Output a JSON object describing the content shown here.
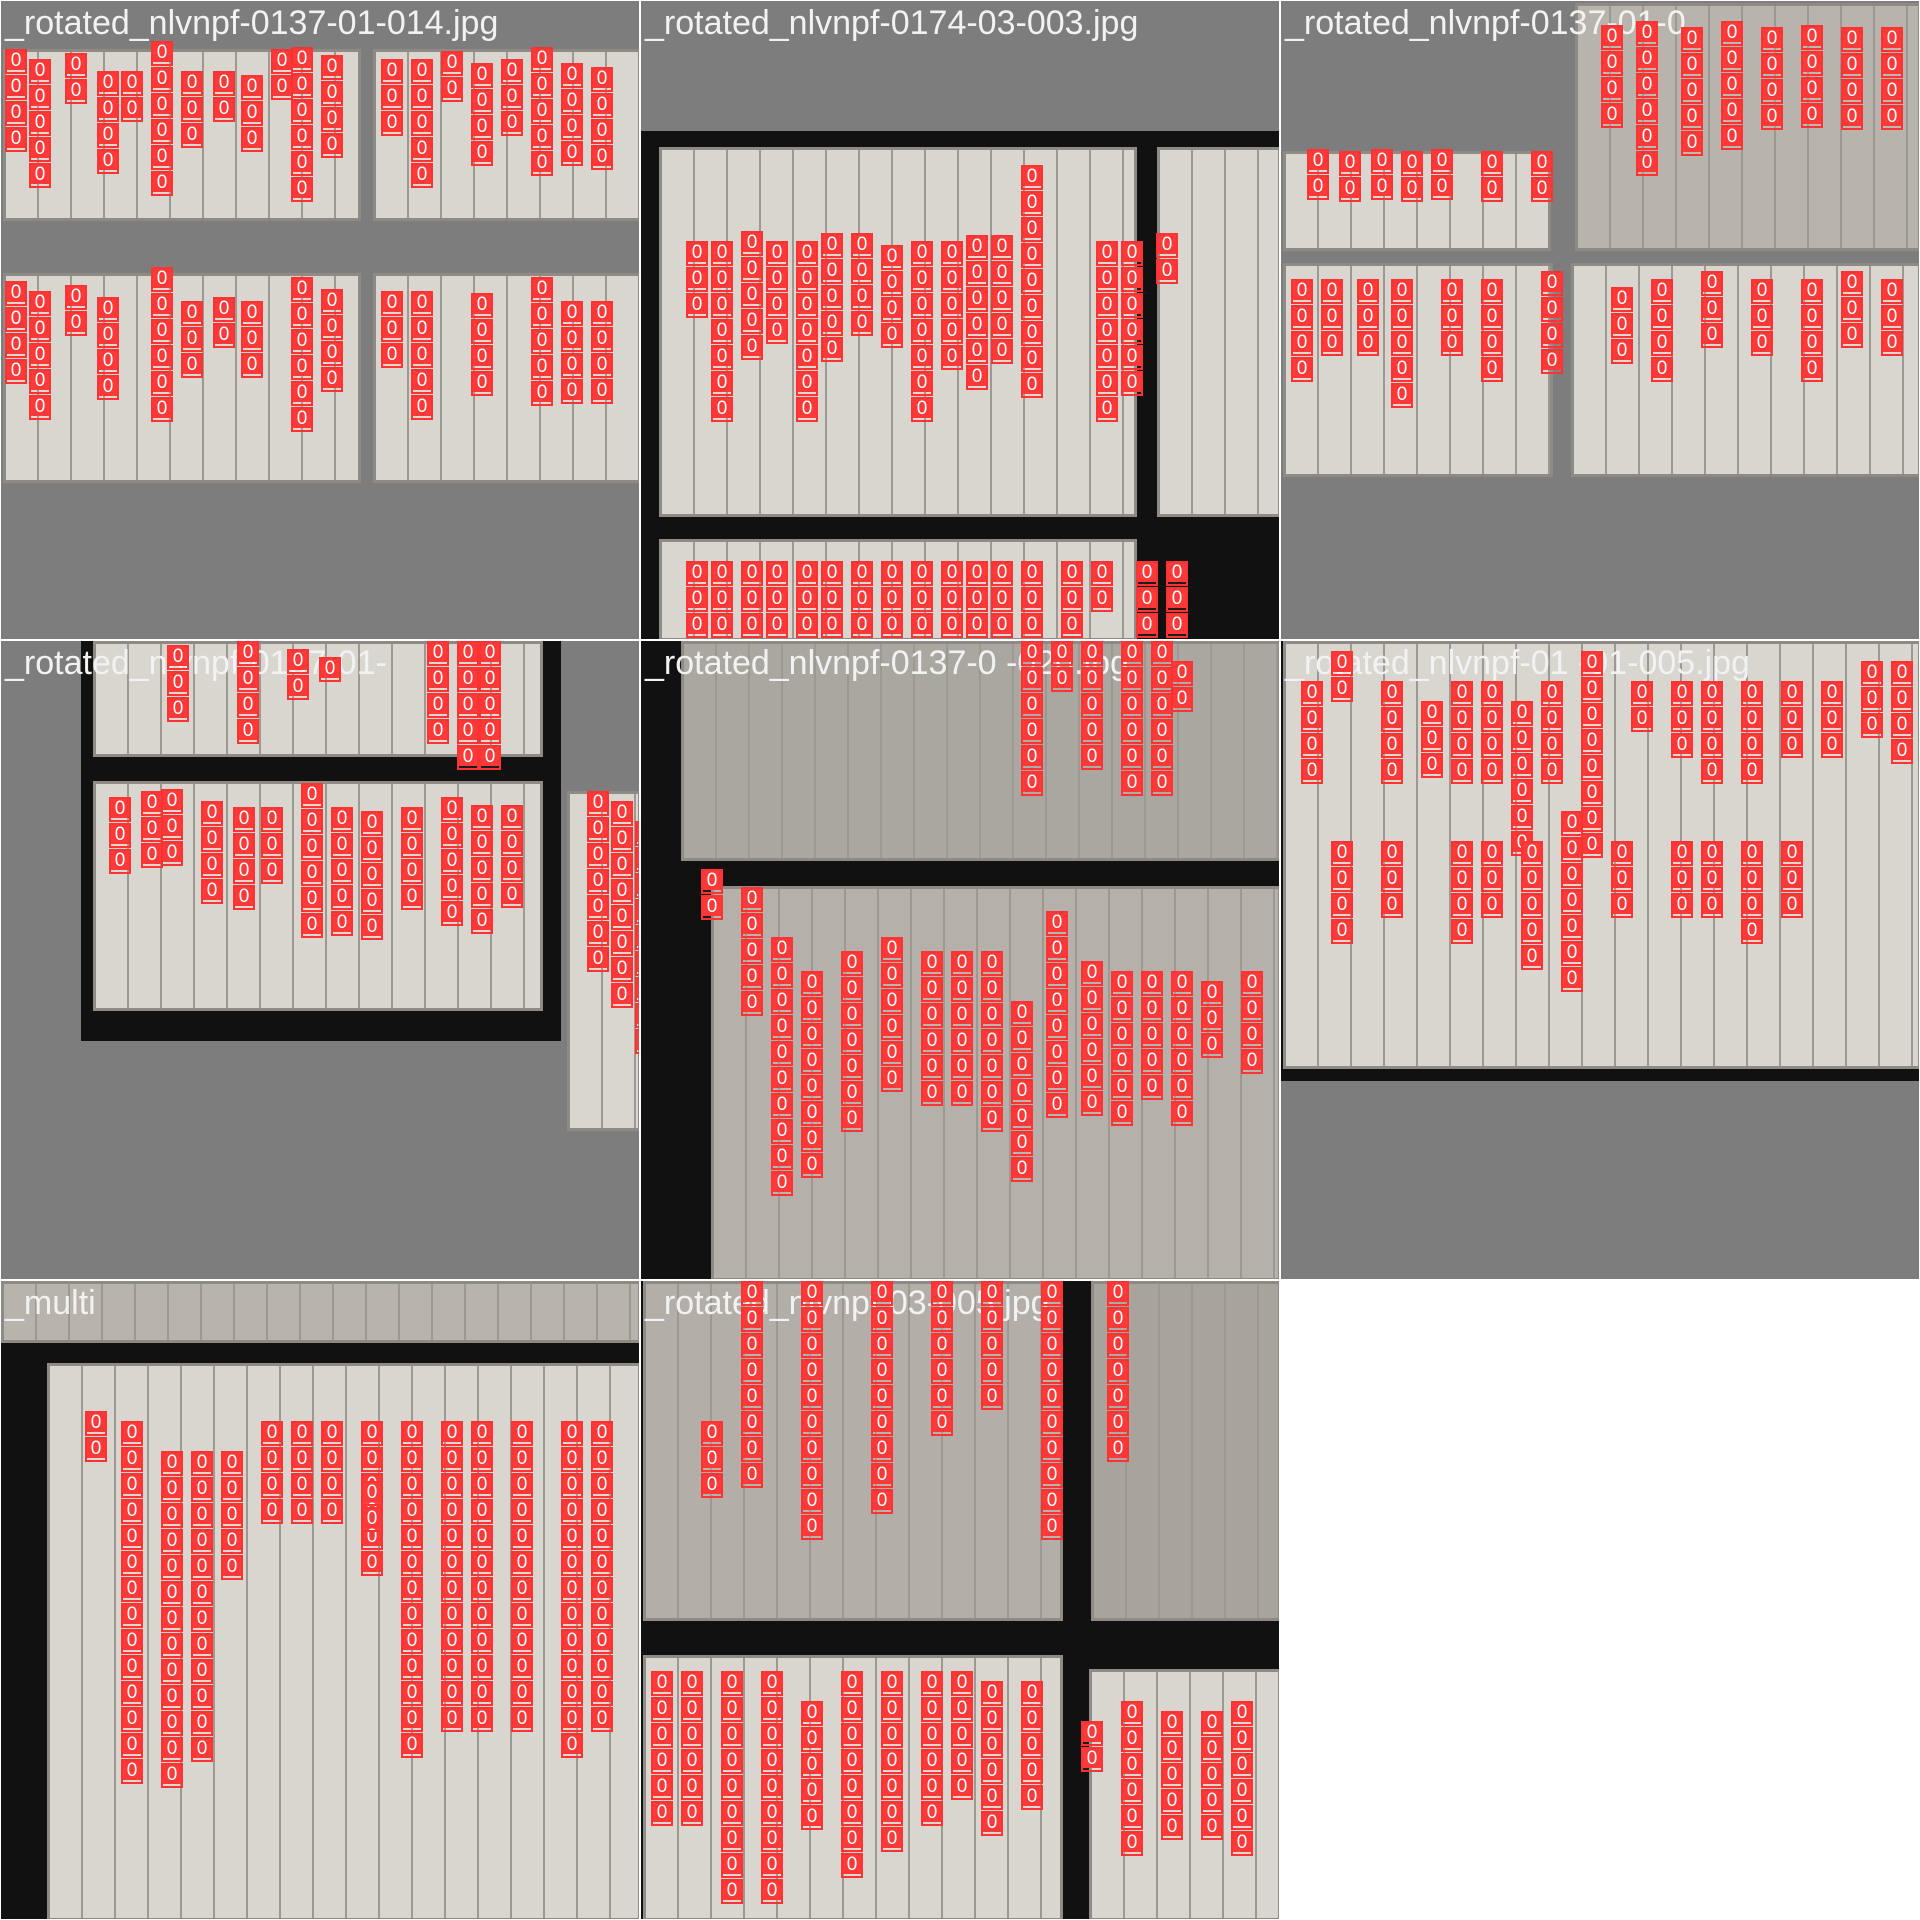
{
  "detection_label": "0",
  "box_color": "#ff3838",
  "tiles": [
    {
      "filename": "_rotated_nlvnpf-0137-01-014.jpg",
      "pages": 4
    },
    {
      "filename": "_rotated_nlvnpf-0174-03-003.jpg",
      "pages": 3
    },
    {
      "filename": "_rotated_nlvnpf-0137-01-0",
      "pages": 4
    },
    {
      "filename": "_rotated_nlvnpf-0137-01-",
      "pages": 3
    },
    {
      "filename": "_rotated_nlvnpf-0137-0 -020.jpg",
      "pages": 3
    },
    {
      "filename": "_rotated_nlvnpf-01 -01-005.jpg",
      "pages": 1
    },
    {
      "filename": "_multi",
      "pages": 2
    },
    {
      "filename": "_rotated_nlvnpf 03-005.jpg",
      "pages": 3
    },
    {
      "filename": "",
      "pages": 0
    }
  ]
}
